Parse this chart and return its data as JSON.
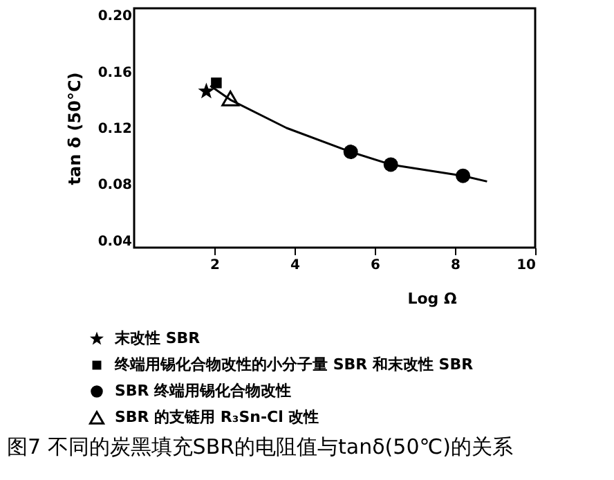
{
  "chart_data": {
    "type": "scatter",
    "title": "图7  不同的炭黑填充SBR的电阻值与tanδ(50℃)的关系",
    "xlabel": "Log Ω",
    "ylabel": "tan δ (50°C)",
    "xlim": [
      0,
      10
    ],
    "xticks": [
      2,
      4,
      6,
      8,
      10
    ],
    "ylim": [
      0.035,
      0.205
    ],
    "yticks": [
      {
        "value": 0.2,
        "label": "0.20"
      },
      0.16,
      {
        "value": 0.12,
        "label": "0.12"
      },
      {
        "value": 0.08,
        "label": "0.08"
      },
      {
        "value": 0.04,
        "label": "0.04"
      }
    ],
    "grid": false,
    "legend": "bottom",
    "series": [
      {
        "name": "末改性 SBR",
        "color": "#000000",
        "marker": "star",
        "x": [
          1.8
        ],
        "values": [
          0.146
        ]
      },
      {
        "name": "终端用锡化合物改性的小分子量 SBR 和末改性 SBR",
        "color": "#000000",
        "marker": "square",
        "x": [
          2.05
        ],
        "values": [
          0.152
        ]
      },
      {
        "name": "SBR 终端用锡化合物改性",
        "color": "#000000",
        "marker": "circle",
        "x": [
          5.4,
          6.4,
          8.2
        ],
        "values": [
          0.103,
          0.094,
          0.086
        ]
      },
      {
        "name": "SBR 的支链用 R₃Sn-Cl 改性",
        "color": "#000000",
        "marker": "triangle",
        "x": [
          2.4
        ],
        "values": [
          0.141
        ]
      },
      {
        "type": "line",
        "color": "#000000",
        "marker": "none",
        "x": [
          1.9,
          2.4,
          3.8,
          5.4,
          6.4,
          8.2,
          8.8
        ],
        "values": [
          0.15,
          0.14,
          0.12,
          0.103,
          0.094,
          0.086,
          0.082
        ]
      }
    ]
  }
}
